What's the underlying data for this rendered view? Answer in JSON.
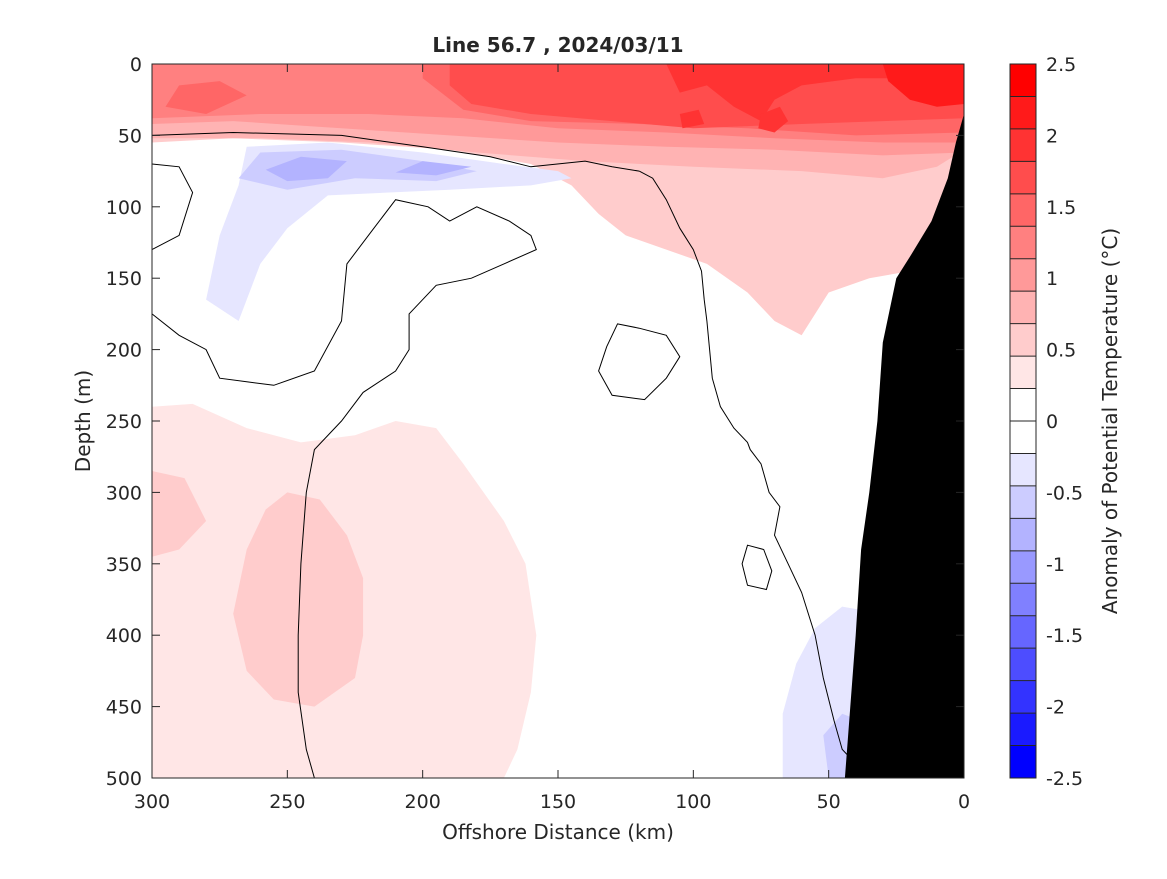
{
  "chart_data": {
    "type": "heatmap",
    "title": "Line 56.7 , 2024/03/11",
    "xlabel": "Offshore Distance (km)",
    "ylabel": "Depth (m)",
    "colorbar_label": "Anomaly of Potential Temperature (°C)",
    "xlim": [
      300,
      0
    ],
    "ylim": [
      0,
      500
    ],
    "x_reversed": true,
    "y_reversed": true,
    "x_ticks": [
      300,
      250,
      200,
      150,
      100,
      50,
      0
    ],
    "y_ticks": [
      0,
      50,
      100,
      150,
      200,
      250,
      300,
      350,
      400,
      450,
      500
    ],
    "colorbar": {
      "range": [
        -2.5,
        2.5
      ],
      "step": 0.25,
      "tick_labels": [
        "2.5",
        "2",
        "1.5",
        "1",
        "0.5",
        "0",
        "-0.5",
        "-1",
        "-1.5",
        "-2",
        "-2.5"
      ],
      "colors": [
        "#0000ff",
        "#1a1aff",
        "#3333ff",
        "#4d4dff",
        "#6666ff",
        "#8080ff",
        "#9999ff",
        "#b3b3ff",
        "#ccccff",
        "#e6e6ff",
        "#ffffff",
        "#ffffff",
        "#ffe6e6",
        "#ffcccc",
        "#ffb3b3",
        "#ff9999",
        "#ff8080",
        "#ff6666",
        "#ff4d4d",
        "#ff3333",
        "#ff1a1a",
        "#ff0000"
      ]
    },
    "bathymetry_color": "#000000",
    "regions": [
      {
        "level": 0.5,
        "points": [
          [
            300,
            0
          ],
          [
            0,
            0
          ],
          [
            0,
            70
          ],
          [
            3,
            88
          ],
          [
            15,
            120
          ],
          [
            20,
            145
          ],
          [
            35,
            150
          ],
          [
            50,
            160
          ],
          [
            60,
            190
          ],
          [
            70,
            180
          ],
          [
            80,
            160
          ],
          [
            95,
            140
          ],
          [
            110,
            130
          ],
          [
            125,
            120
          ],
          [
            135,
            105
          ],
          [
            145,
            85
          ],
          [
            160,
            70
          ],
          [
            190,
            60
          ],
          [
            230,
            55
          ],
          [
            270,
            52
          ],
          [
            300,
            55
          ]
        ]
      },
      {
        "level": 0.75,
        "points": [
          [
            300,
            0
          ],
          [
            0,
            0
          ],
          [
            0,
            60
          ],
          [
            10,
            72
          ],
          [
            30,
            80
          ],
          [
            60,
            75
          ],
          [
            100,
            72
          ],
          [
            140,
            68
          ],
          [
            180,
            62
          ],
          [
            220,
            55
          ],
          [
            260,
            52
          ],
          [
            300,
            52
          ]
        ]
      },
      {
        "level": 1.0,
        "points": [
          [
            300,
            0
          ],
          [
            0,
            0
          ],
          [
            0,
            62
          ],
          [
            30,
            64
          ],
          [
            70,
            60
          ],
          [
            110,
            58
          ],
          [
            150,
            55
          ],
          [
            190,
            50
          ],
          [
            230,
            45
          ],
          [
            270,
            40
          ],
          [
            300,
            42
          ]
        ]
      },
      {
        "level": 1.25,
        "points": [
          [
            300,
            0
          ],
          [
            0,
            0
          ],
          [
            0,
            55
          ],
          [
            30,
            55
          ],
          [
            70,
            52
          ],
          [
            110,
            48
          ],
          [
            150,
            45
          ],
          [
            185,
            38
          ],
          [
            220,
            35
          ],
          [
            260,
            35
          ],
          [
            300,
            38
          ]
        ]
      },
      {
        "level": 1.5,
        "points": [
          [
            300,
            0
          ],
          [
            0,
            0
          ],
          [
            0,
            48
          ],
          [
            40,
            50
          ],
          [
            80,
            45
          ],
          [
            120,
            42
          ],
          [
            160,
            40
          ],
          [
            185,
            32
          ],
          [
            200,
            10
          ],
          [
            200,
            0
          ]
        ]
      },
      {
        "level": 1.5,
        "points": [
          [
            290,
            15
          ],
          [
            275,
            12
          ],
          [
            265,
            22
          ],
          [
            280,
            35
          ],
          [
            295,
            30
          ]
        ]
      },
      {
        "level": 1.75,
        "points": [
          [
            190,
            0
          ],
          [
            0,
            0
          ],
          [
            0,
            38
          ],
          [
            30,
            40
          ],
          [
            60,
            42
          ],
          [
            100,
            45
          ],
          [
            130,
            40
          ],
          [
            160,
            35
          ],
          [
            182,
            28
          ],
          [
            190,
            15
          ]
        ]
      },
      {
        "level": 2.0,
        "points": [
          [
            105,
            20
          ],
          [
            95,
            15
          ],
          [
            85,
            30
          ],
          [
            75,
            40
          ],
          [
            70,
            25
          ],
          [
            60,
            15
          ],
          [
            40,
            10
          ],
          [
            20,
            10
          ],
          [
            0,
            15
          ],
          [
            0,
            0
          ],
          [
            110,
            0
          ]
        ]
      },
      {
        "level": 2.0,
        "points": [
          [
            105,
            35
          ],
          [
            98,
            32
          ],
          [
            96,
            42
          ],
          [
            104,
            45
          ]
        ]
      },
      {
        "level": 2.0,
        "points": [
          [
            75,
            35
          ],
          [
            68,
            30
          ],
          [
            65,
            40
          ],
          [
            70,
            48
          ],
          [
            76,
            45
          ]
        ]
      },
      {
        "level": 2.25,
        "points": [
          [
            30,
            0
          ],
          [
            0,
            0
          ],
          [
            0,
            28
          ],
          [
            10,
            30
          ],
          [
            20,
            25
          ],
          [
            28,
            12
          ]
        ]
      },
      {
        "level": -0.25,
        "points": [
          [
            265,
            58
          ],
          [
            235,
            55
          ],
          [
            200,
            62
          ],
          [
            170,
            70
          ],
          [
            150,
            75
          ],
          [
            145,
            80
          ],
          [
            160,
            85
          ],
          [
            190,
            88
          ],
          [
            235,
            92
          ],
          [
            250,
            115
          ],
          [
            260,
            140
          ],
          [
            268,
            180
          ],
          [
            280,
            165
          ],
          [
            275,
            120
          ],
          [
            268,
            85
          ]
        ]
      },
      {
        "level": -0.5,
        "points": [
          [
            260,
            62
          ],
          [
            230,
            60
          ],
          [
            200,
            68
          ],
          [
            180,
            75
          ],
          [
            195,
            82
          ],
          [
            225,
            80
          ],
          [
            250,
            88
          ],
          [
            268,
            80
          ]
        ]
      },
      {
        "level": -0.75,
        "points": [
          [
            245,
            65
          ],
          [
            228,
            68
          ],
          [
            235,
            80
          ],
          [
            250,
            82
          ],
          [
            258,
            74
          ]
        ]
      },
      {
        "level": -0.75,
        "points": [
          [
            200,
            68
          ],
          [
            182,
            72
          ],
          [
            195,
            78
          ],
          [
            210,
            76
          ]
        ]
      },
      {
        "level": 0.25,
        "points": [
          [
            300,
            240
          ],
          [
            285,
            238
          ],
          [
            265,
            255
          ],
          [
            245,
            265
          ],
          [
            225,
            260
          ],
          [
            210,
            250
          ],
          [
            195,
            255
          ],
          [
            185,
            280
          ],
          [
            170,
            320
          ],
          [
            162,
            350
          ],
          [
            158,
            400
          ],
          [
            160,
            440
          ],
          [
            165,
            480
          ],
          [
            170,
            500
          ],
          [
            300,
            500
          ]
        ]
      },
      {
        "level": 0.5,
        "points": [
          [
            300,
            285
          ],
          [
            288,
            290
          ],
          [
            280,
            320
          ],
          [
            290,
            340
          ],
          [
            300,
            345
          ]
        ]
      },
      {
        "level": 0.5,
        "points": [
          [
            250,
            300
          ],
          [
            238,
            305
          ],
          [
            228,
            330
          ],
          [
            222,
            360
          ],
          [
            222,
            400
          ],
          [
            225,
            430
          ],
          [
            240,
            450
          ],
          [
            255,
            445
          ],
          [
            265,
            425
          ],
          [
            270,
            385
          ],
          [
            265,
            340
          ],
          [
            258,
            312
          ]
        ]
      },
      {
        "level": -0.25,
        "points": [
          [
            0,
            500
          ],
          [
            0,
            400
          ],
          [
            30,
            385
          ],
          [
            45,
            380
          ],
          [
            55,
            395
          ],
          [
            62,
            420
          ],
          [
            67,
            455
          ],
          [
            67,
            500
          ]
        ]
      },
      {
        "level": -0.5,
        "points": [
          [
            50,
            500
          ],
          [
            52,
            470
          ],
          [
            45,
            455
          ],
          [
            38,
            460
          ],
          [
            32,
            475
          ],
          [
            30,
            500
          ]
        ]
      }
    ],
    "zero_contours": [
      {
        "points": [
          [
            300,
            50
          ],
          [
            270,
            48
          ],
          [
            230,
            50
          ],
          [
            200,
            58
          ],
          [
            175,
            65
          ],
          [
            160,
            72
          ],
          [
            140,
            68
          ],
          [
            130,
            72
          ],
          [
            120,
            75
          ]
        ],
        "closed": false
      },
      {
        "points": [
          [
            300,
            70
          ],
          [
            290,
            72
          ],
          [
            285,
            90
          ],
          [
            290,
            120
          ],
          [
            300,
            130
          ]
        ],
        "closed": false
      },
      {
        "points": [
          [
            300,
            175
          ],
          [
            290,
            190
          ],
          [
            280,
            200
          ],
          [
            275,
            220
          ],
          [
            255,
            225
          ],
          [
            240,
            215
          ],
          [
            230,
            180
          ],
          [
            228,
            140
          ],
          [
            218,
            115
          ],
          [
            210,
            95
          ],
          [
            198,
            100
          ],
          [
            190,
            110
          ],
          [
            180,
            100
          ],
          [
            168,
            110
          ],
          [
            160,
            120
          ],
          [
            158,
            130
          ],
          [
            170,
            140
          ],
          [
            182,
            150
          ],
          [
            195,
            155
          ],
          [
            205,
            175
          ],
          [
            205,
            200
          ],
          [
            210,
            215
          ],
          [
            222,
            230
          ],
          [
            230,
            250
          ],
          [
            240,
            270
          ],
          [
            243,
            300
          ],
          [
            245,
            350
          ],
          [
            246,
            400
          ],
          [
            246,
            440
          ],
          [
            243,
            480
          ],
          [
            240,
            500
          ]
        ],
        "closed": false
      },
      {
        "points": [
          [
            120,
            75
          ],
          [
            115,
            80
          ],
          [
            110,
            95
          ],
          [
            105,
            115
          ],
          [
            100,
            130
          ],
          [
            97,
            145
          ],
          [
            96,
            165
          ],
          [
            95,
            180
          ],
          [
            94,
            200
          ],
          [
            93,
            220
          ],
          [
            90,
            240
          ],
          [
            85,
            255
          ],
          [
            80,
            265
          ],
          [
            79,
            270
          ],
          [
            75,
            280
          ],
          [
            72,
            300
          ],
          [
            68,
            310
          ],
          [
            70,
            330
          ],
          [
            65,
            350
          ],
          [
            60,
            370
          ],
          [
            55,
            400
          ],
          [
            52,
            430
          ],
          [
            48,
            460
          ],
          [
            45,
            480
          ],
          [
            40,
            490
          ],
          [
            28,
            480
          ],
          [
            25,
            460
          ],
          [
            20,
            440
          ],
          [
            17,
            410
          ],
          [
            12,
            390
          ],
          [
            8,
            370
          ],
          [
            2,
            340
          ],
          [
            -5,
            300
          ],
          [
            -12,
            270
          ],
          [
            -20,
            260
          ]
        ],
        "closed": false
      },
      {
        "points": [
          [
            128,
            182
          ],
          [
            120,
            185
          ],
          [
            110,
            190
          ],
          [
            105,
            205
          ],
          [
            110,
            220
          ],
          [
            118,
            235
          ],
          [
            130,
            232
          ],
          [
            135,
            215
          ],
          [
            132,
            198
          ]
        ],
        "closed": true
      },
      {
        "points": [
          [
            80,
            337
          ],
          [
            74,
            340
          ],
          [
            71,
            355
          ],
          [
            73,
            368
          ],
          [
            80,
            365
          ],
          [
            82,
            350
          ]
        ],
        "closed": true
      }
    ],
    "bathymetry": [
      [
        0,
        35
      ],
      [
        3,
        55
      ],
      [
        6,
        80
      ],
      [
        12,
        110
      ],
      [
        20,
        135
      ],
      [
        25,
        150
      ],
      [
        30,
        195
      ],
      [
        32,
        250
      ],
      [
        35,
        300
      ],
      [
        38,
        340
      ],
      [
        40,
        400
      ],
      [
        42,
        450
      ],
      [
        44,
        500
      ],
      [
        0,
        500
      ]
    ]
  }
}
